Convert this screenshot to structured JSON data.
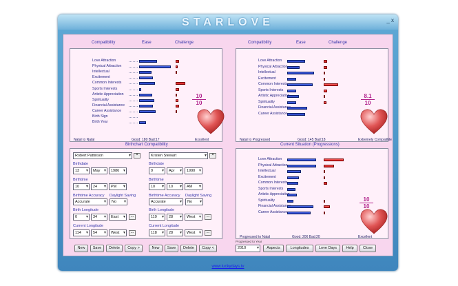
{
  "app_title": "STARLOVE",
  "window_controls": "_ x",
  "website": "www.luckydays.tv",
  "headers": {
    "compat": "Compatibility",
    "ease": "Ease",
    "challenge": "Challenge"
  },
  "natal": {
    "rows": [
      {
        "label": "Love Attraction",
        "ease": 0.55,
        "chal": 0.12
      },
      {
        "label": "Physical Attraction",
        "ease": 0.95,
        "chal": 0.08
      },
      {
        "label": "Intellectual",
        "ease": 0.38,
        "chal": 0.03
      },
      {
        "label": "Excitement",
        "ease": 0.42,
        "chal": 0.0
      },
      {
        "label": "Common Interests",
        "ease": 0.48,
        "chal": 0.35
      },
      {
        "label": "Sports Interests",
        "ease": 0.07,
        "chal": 0.12
      },
      {
        "label": "Artistic Appreciation",
        "ease": 0.4,
        "chal": 0.03
      },
      {
        "label": "Spirituality",
        "ease": 0.46,
        "chal": 0.1
      },
      {
        "label": "Financial Assistance",
        "ease": 0.42,
        "chal": 0.12
      },
      {
        "label": "Career Assistance",
        "ease": 0.5,
        "chal": 0.03
      },
      {
        "label": "Birth Sign",
        "ease": 0.0,
        "chal": 0.0
      },
      {
        "label": "Birth Year",
        "ease": 0.2,
        "chal": 0.0
      }
    ],
    "score_num": "10",
    "score_den": "10",
    "foot_left": "Natal to Natal",
    "foot_mid": "Good: 180  Bad:17",
    "foot_right": "Excellent"
  },
  "progressed": {
    "rows": [
      {
        "label": "Love Attraction",
        "ease": 0.55,
        "chal": 0.12
      },
      {
        "label": "Physical Attraction",
        "ease": 0.38,
        "chal": 0.12
      },
      {
        "label": "Intellectual",
        "ease": 0.82,
        "chal": 0.03
      },
      {
        "label": "Excitement",
        "ease": 0.28,
        "chal": 0.03
      },
      {
        "label": "Common Interests",
        "ease": 0.78,
        "chal": 0.52
      },
      {
        "label": "Sports Interests",
        "ease": 0.28,
        "chal": 0.12
      },
      {
        "label": "Artistic Appreciation",
        "ease": 0.36,
        "chal": 0.03
      },
      {
        "label": "Spirituality",
        "ease": 0.28,
        "chal": 0.1
      },
      {
        "label": "Financial Assistance",
        "ease": 0.6,
        "chal": 0.0
      },
      {
        "label": "Career Assistance",
        "ease": 0.55,
        "chal": 0.0
      }
    ],
    "score_num": "8.1",
    "score_den": "10",
    "foot_left": "Natal to Progressed",
    "foot_mid": "Good: 145  Bad:18",
    "foot_right": "Extremely Compatible"
  },
  "current": {
    "title": "Current Situation (Progressions)",
    "rows": [
      {
        "label": "Love Attraction",
        "ease": 0.88,
        "chal": 0.72
      },
      {
        "label": "Physical Attraction",
        "ease": 0.88,
        "chal": 0.38
      },
      {
        "label": "Intellectual",
        "ease": 0.42,
        "chal": 0.03
      },
      {
        "label": "Excitement",
        "ease": 0.36,
        "chal": 0.03
      },
      {
        "label": "Common Interests",
        "ease": 0.34,
        "chal": 0.12
      },
      {
        "label": "Sports Interests",
        "ease": 0.24,
        "chal": 0.0
      },
      {
        "label": "Artistic Appreciation",
        "ease": 0.3,
        "chal": 0.0
      },
      {
        "label": "Spirituality",
        "ease": 0.18,
        "chal": 0.03
      },
      {
        "label": "Financial Assistance",
        "ease": 0.8,
        "chal": 0.22
      },
      {
        "label": "Career Assistance",
        "ease": 0.7,
        "chal": 0.03
      }
    ],
    "score_num": "10",
    "score_den": "10",
    "foot_left": "Progressed to Natal",
    "foot_mid": "Good: 206  Bad:20",
    "foot_right": "Excellent"
  },
  "birthchart": {
    "title": "Birthchart Compatibility",
    "person1": {
      "name": "Robert Pattinson",
      "birthdate_label": "Birthdate",
      "day": "13",
      "month": "May",
      "year": "1986",
      "birthtime_label": "Birthtime",
      "hour": "10",
      "minute": "24",
      "ampm": "PM",
      "accuracy_label": "Birthtime Accuracy",
      "dst_label": "Daylight Saving",
      "accuracy": "Accurate",
      "dst": "No",
      "blong_label": "Birth Longitude",
      "blong_deg": "0",
      "blong_min": "34",
      "blong_dir": "East",
      "clong_label": "Current Longitude",
      "clong_deg": "114",
      "clong_min": "54",
      "clong_dir": "West"
    },
    "person2": {
      "name": "Kristen Stewart",
      "birthdate_label": "Birthdate",
      "day": "9",
      "month": "Apr",
      "year": "1990",
      "birthtime_label": "Birthtime",
      "hour": "10",
      "minute": "10",
      "ampm": "AM",
      "accuracy_label": "Birthtime Accuracy",
      "dst_label": "Daylight Saving",
      "accuracy": "Accurate",
      "dst": "No",
      "blong_label": "Birth Longitude",
      "blong_deg": "119",
      "blong_min": "28",
      "blong_dir": "West",
      "clong_label": "Current Longitude",
      "clong_deg": "118",
      "clong_min": "28",
      "clong_dir": "West"
    },
    "more": "..."
  },
  "buttons1": [
    "New",
    "Save",
    "Delete",
    "Copy >"
  ],
  "buttons2": [
    "New",
    "Save",
    "Delete",
    "Copy <"
  ],
  "progressed_to_label": "Progressed to Year",
  "progressed_year": "2010",
  "bottom_buttons": [
    "Aspects",
    "Longitudes",
    "Love Days",
    "Help",
    "Close"
  ]
}
